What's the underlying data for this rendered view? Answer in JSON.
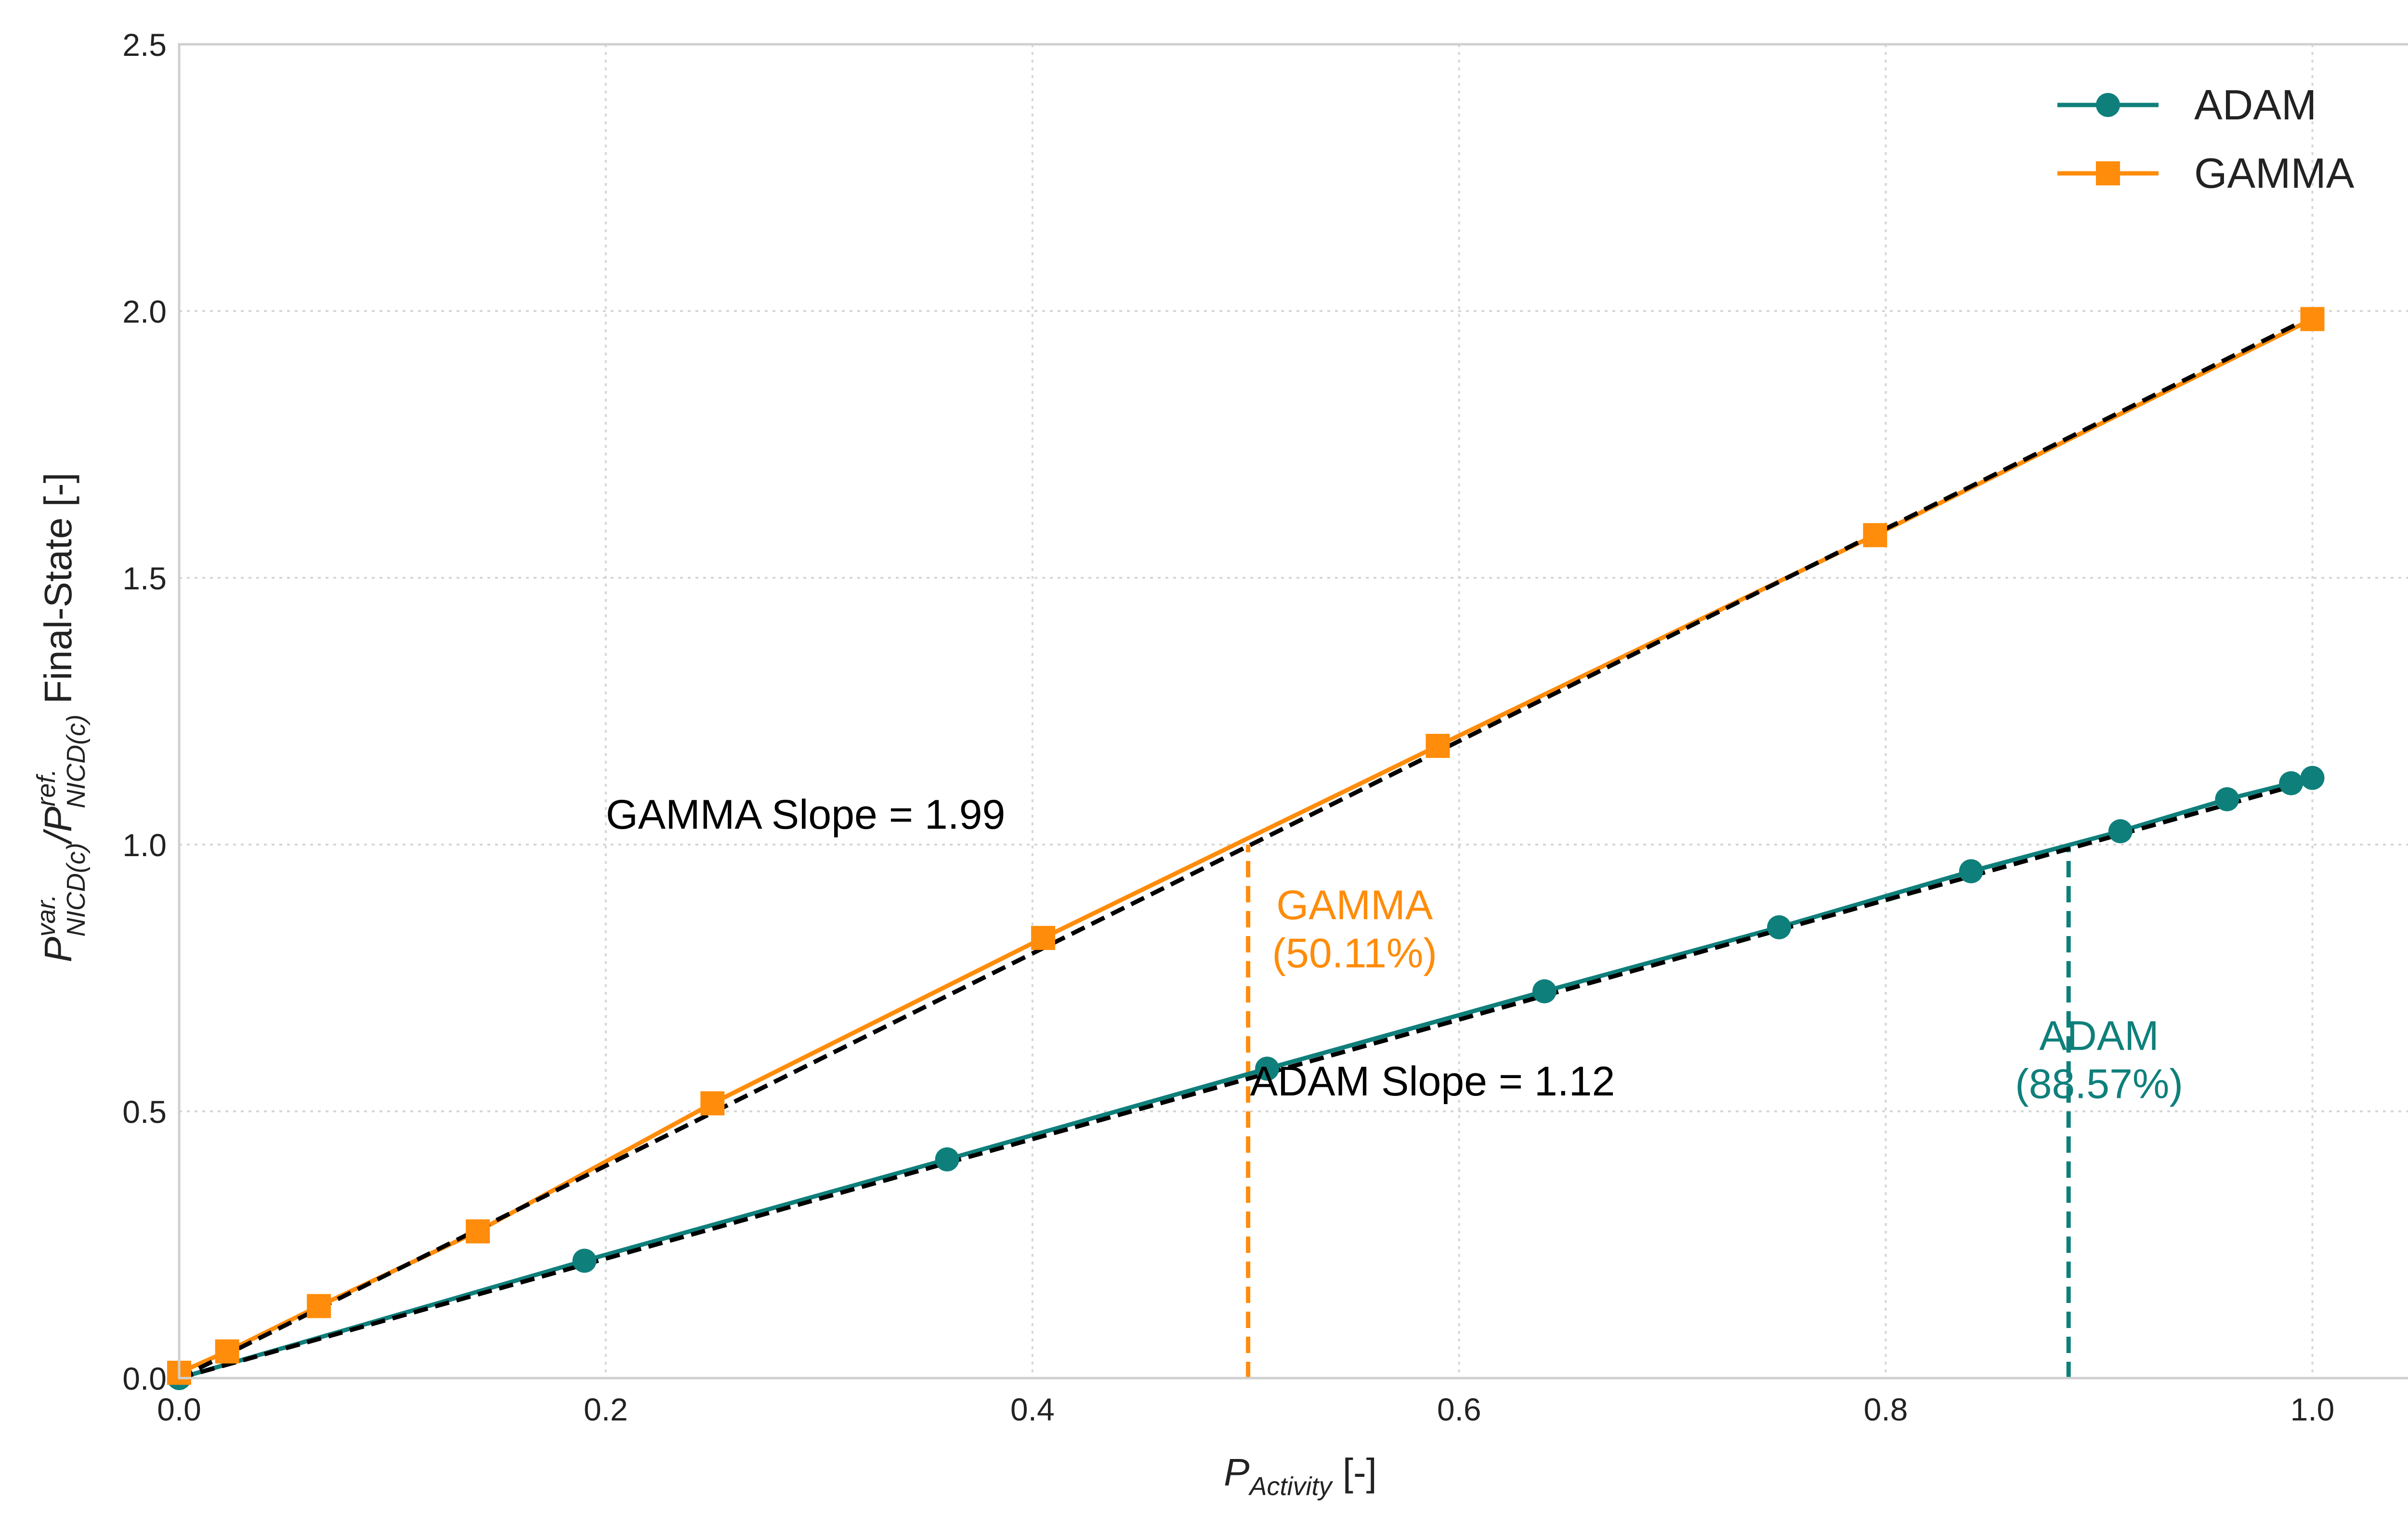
{
  "chart_data": {
    "type": "line",
    "title": "",
    "xlabel": {
      "main": "P",
      "sub": "Activity",
      "unit": " [-]"
    },
    "ylabel": {
      "p1": "P",
      "sup1": "var.",
      "sub1": "NICD(c)",
      "slash": "/",
      "p2": "P",
      "sup2": "ref.",
      "sub2": "NICD(c)",
      "rest": "  Final-State [-]"
    },
    "xlim": [
      0.0,
      1.05
    ],
    "ylim": [
      0.0,
      2.5
    ],
    "x_ticks": [
      0.0,
      0.2,
      0.4,
      0.6,
      0.8,
      1.0
    ],
    "y_ticks": [
      0.0,
      0.5,
      1.0,
      1.5,
      2.0,
      2.5
    ],
    "x_tick_labels": [
      "0.0",
      "0.2",
      "0.4",
      "0.6",
      "0.8",
      "1.0"
    ],
    "y_tick_labels": [
      "0.0",
      "0.5",
      "1.0",
      "1.5",
      "2.0",
      "2.5"
    ],
    "grid": true,
    "legend_position": "top-right",
    "series": [
      {
        "name": "ADAM",
        "color": "#0f7f7b",
        "marker": "circle",
        "x": [
          0.0,
          0.19,
          0.36,
          0.51,
          0.64,
          0.75,
          0.84,
          0.91,
          0.96,
          0.99,
          1.0
        ],
        "y": [
          0.0,
          0.22,
          0.41,
          0.58,
          0.725,
          0.845,
          0.95,
          1.025,
          1.085,
          1.115,
          1.125
        ],
        "fit_slope": 1.12
      },
      {
        "name": "GAMMA",
        "color": "#ff8c0a",
        "marker": "square",
        "x": [
          0.0,
          0.0225,
          0.0655,
          0.14,
          0.25,
          0.405,
          0.59,
          0.795,
          1.0
        ],
        "y": [
          0.01,
          0.05,
          0.135,
          0.275,
          0.515,
          0.825,
          1.185,
          1.58,
          1.985
        ],
        "fit_slope": 1.99
      }
    ],
    "threshold_lines": [
      {
        "series": "GAMMA",
        "x": 0.5011,
        "y_top": 1.0,
        "color": "#ff8c0a"
      },
      {
        "series": "ADAM",
        "x": 0.8857,
        "y_top": 1.0,
        "color": "#0f7f7b"
      }
    ],
    "annotations": [
      {
        "id": "gamma-slope",
        "text": "GAMMA Slope = 1.99",
        "x": 0.2,
        "y": 1.03,
        "color": "#000000",
        "anchor": "start"
      },
      {
        "id": "adam-slope",
        "text": "ADAM Slope = 1.12",
        "x": 0.502,
        "y": 0.53,
        "color": "#000000",
        "anchor": "start"
      },
      {
        "id": "gamma-thr-name",
        "text": "GAMMA",
        "x": 0.551,
        "y": 0.86,
        "color": "#ff8c0a",
        "anchor": "middle"
      },
      {
        "id": "gamma-thr-pct",
        "text": "(50.11%)",
        "x": 0.551,
        "y": 0.77,
        "color": "#ff8c0a",
        "anchor": "middle"
      },
      {
        "id": "adam-thr-name",
        "text": "ADAM",
        "x": 0.9,
        "y": 0.615,
        "color": "#0f7f7b",
        "anchor": "middle"
      },
      {
        "id": "adam-thr-pct",
        "text": "(88.57%)",
        "x": 0.9,
        "y": 0.525,
        "color": "#0f7f7b",
        "anchor": "middle"
      }
    ]
  }
}
